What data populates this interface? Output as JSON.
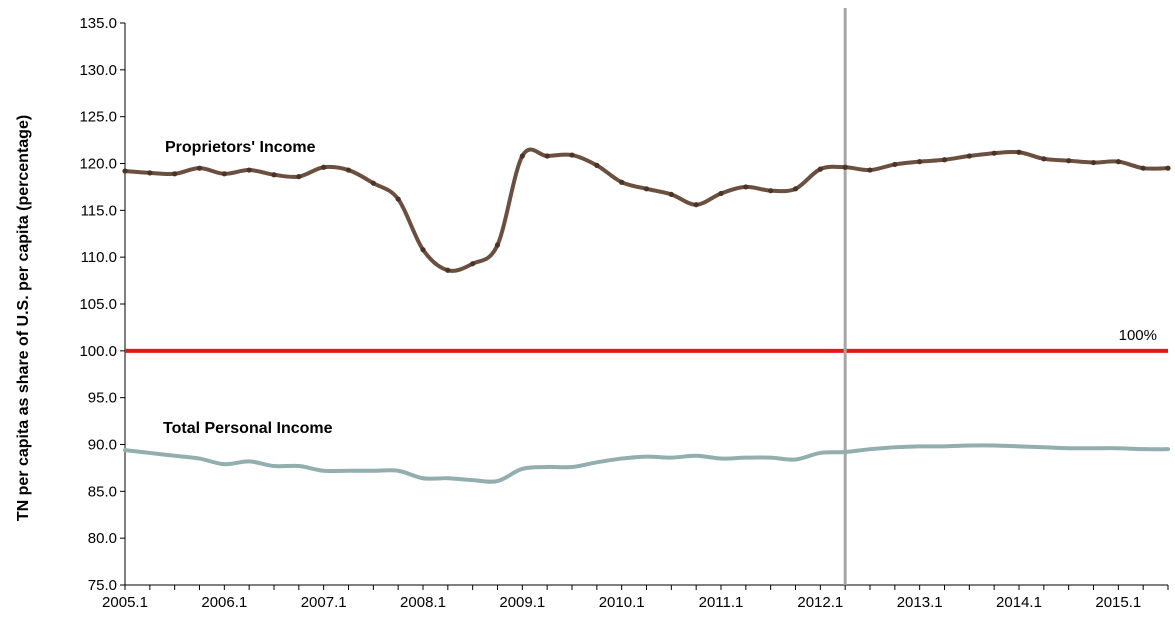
{
  "chart_data": {
    "type": "line",
    "xlabel": "",
    "ylabel": "TN per capita as share of U.S. per capita (percentage)",
    "ylim": [
      75,
      135
    ],
    "y_ticks": [
      "75.0",
      "80.0",
      "85.0",
      "90.0",
      "95.0",
      "100.0",
      "105.0",
      "110.0",
      "115.0",
      "120.0",
      "125.0",
      "130.0",
      "135.0"
    ],
    "x_ticks": [
      "2005.1",
      "2006.1",
      "2007.1",
      "2008.1",
      "2009.1",
      "2010.1",
      "2011.1",
      "2012.1",
      "2013.1",
      "2014.1",
      "2015.1"
    ],
    "x_start": 2005.0,
    "x_step": 0.25,
    "series": [
      {
        "name": "Proprietors' Income",
        "color": "#6b4f3f",
        "markers": true,
        "values": [
          119.2,
          119.0,
          118.9,
          119.5,
          118.9,
          119.3,
          118.8,
          118.6,
          119.6,
          119.3,
          117.9,
          116.2,
          110.8,
          108.6,
          109.3,
          111.3,
          120.8,
          120.8,
          120.9,
          119.8,
          118.0,
          117.3,
          116.7,
          115.6,
          116.8,
          117.5,
          117.1,
          117.3,
          119.4,
          119.6,
          119.3,
          119.9,
          120.2,
          120.4,
          120.8,
          121.1,
          121.2,
          120.5,
          120.3,
          120.1,
          120.2,
          119.5,
          119.5
        ]
      },
      {
        "name": "Total Personal Income",
        "color": "#92aeae",
        "markers": false,
        "values": [
          89.4,
          89.1,
          88.8,
          88.5,
          87.9,
          88.2,
          87.7,
          87.7,
          87.2,
          87.2,
          87.2,
          87.2,
          86.4,
          86.4,
          86.2,
          86.1,
          87.4,
          87.6,
          87.6,
          88.1,
          88.5,
          88.7,
          88.6,
          88.8,
          88.5,
          88.6,
          88.6,
          88.4,
          89.1,
          89.2,
          89.5,
          89.7,
          89.8,
          89.8,
          89.9,
          89.9,
          89.8,
          89.7,
          89.6,
          89.6,
          89.6,
          89.5,
          89.5
        ]
      }
    ],
    "reference_line": {
      "value": 100,
      "label": "100%",
      "color": "#e8141b"
    },
    "vertical_marker": {
      "x": 2012.25,
      "color": "#a6a6a6"
    },
    "grid": false,
    "legend": "none"
  }
}
